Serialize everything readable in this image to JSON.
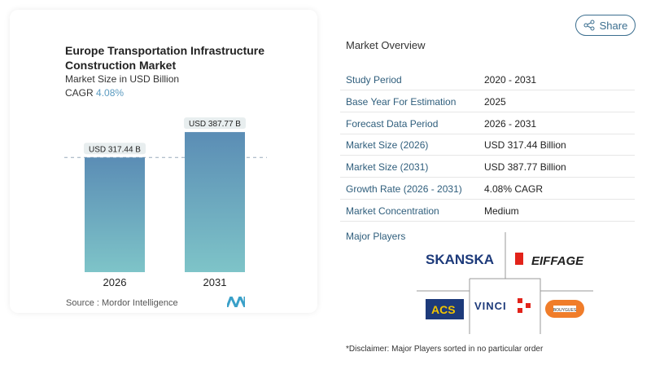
{
  "header": {
    "share_label": "Share"
  },
  "chart_card": {
    "title": "Europe Transportation Infrastructure Construction Market",
    "subtitle": "Market Size in USD Billion",
    "cagr_label": "CAGR",
    "cagr_value": "4.08%",
    "source": "Source :  Mordor Intelligence"
  },
  "chart_data": {
    "type": "bar",
    "categories": [
      "2026",
      "2031"
    ],
    "values": [
      317.44,
      387.77
    ],
    "data_labels": [
      "USD 317.44 B",
      "USD 387.77 B"
    ],
    "ylabel": "Market Size in USD Billion",
    "ylim": [
      0,
      388
    ],
    "grid": false,
    "colors": {
      "top": "#5b8db5",
      "bottom": "#7ec4c8"
    }
  },
  "overview": {
    "title": "Market Overview",
    "rows": [
      {
        "key": "Study Period",
        "value": "2020 - 2031"
      },
      {
        "key": "Base Year For Estimation",
        "value": "2025"
      },
      {
        "key": "Forecast Data Period",
        "value": "2026 - 2031"
      },
      {
        "key": "Market Size (2026)",
        "value": "USD 317.44 Billion"
      },
      {
        "key": "Market Size (2031)",
        "value": "USD 387.77 Billion"
      },
      {
        "key": "Growth Rate (2026 - 2031)",
        "value": "4.08% CAGR"
      },
      {
        "key": "Market Concentration",
        "value": "Medium"
      }
    ],
    "major_players_label": "Major Players",
    "players": [
      "SKANSKA",
      "EIFFAGE",
      "ACS",
      "VINCI",
      "BOUYGUES"
    ],
    "disclaimer": "*Disclaimer: Major Players sorted in no particular order"
  }
}
